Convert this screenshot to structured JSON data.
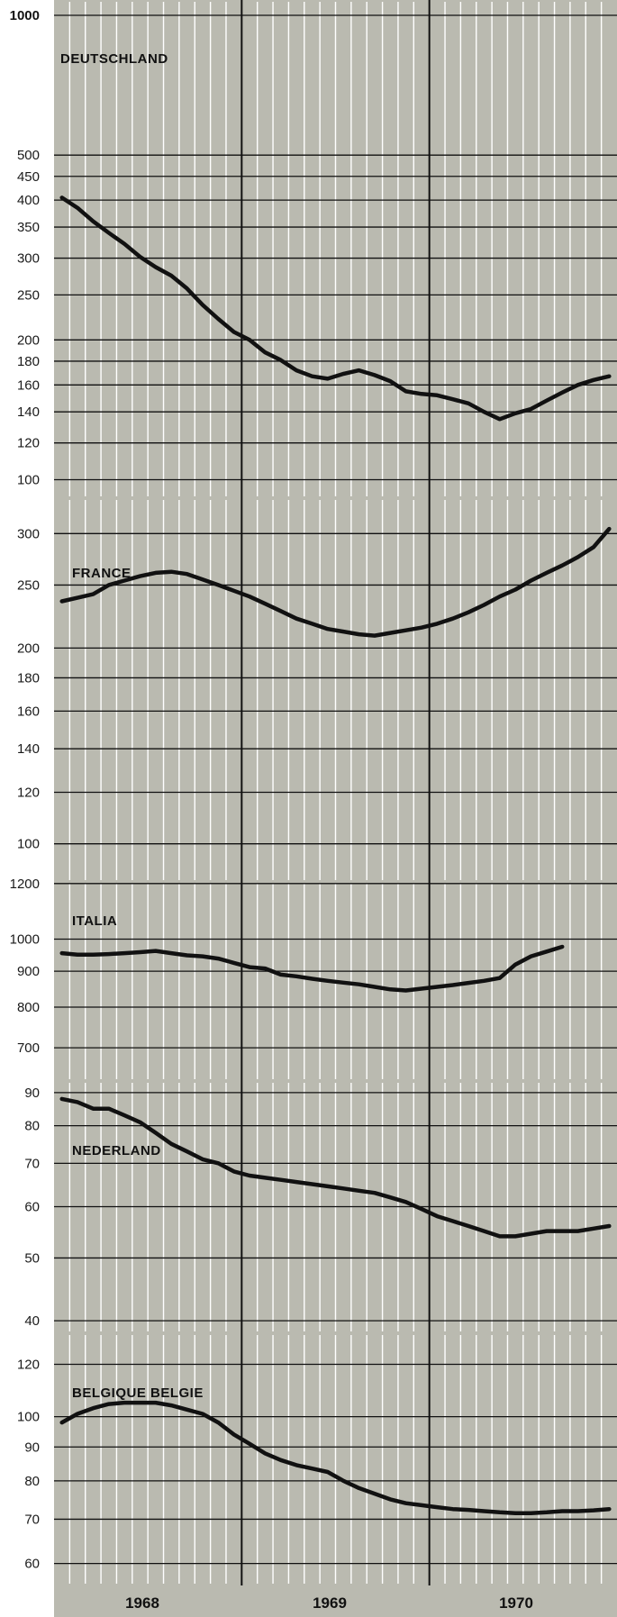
{
  "colors": {
    "panel_bg": "#babab0",
    "grid_line": "#ffffff",
    "axis_line": "#111111",
    "series_line": "#111111"
  },
  "x_axis": {
    "labels": [
      "1968",
      "1969",
      "1970"
    ],
    "scale": "months Jan 1968 - Dec 1970"
  },
  "chart_data": [
    {
      "type": "line",
      "title": "DEUTSCHLAND",
      "scale": "log",
      "ylim": [
        95,
        1000
      ],
      "yticks": [
        "100",
        "120",
        "140",
        "160",
        "180",
        "200",
        "250",
        "300",
        "350",
        "400",
        "450",
        "500",
        "1000"
      ],
      "x": [
        "1968-01",
        "1968-02",
        "1968-03",
        "1968-04",
        "1968-05",
        "1968-06",
        "1968-07",
        "1968-08",
        "1968-09",
        "1968-10",
        "1968-11",
        "1968-12",
        "1969-01",
        "1969-02",
        "1969-03",
        "1969-04",
        "1969-05",
        "1969-06",
        "1969-07",
        "1969-08",
        "1969-09",
        "1969-10",
        "1969-11",
        "1969-12",
        "1970-01",
        "1970-02",
        "1970-03",
        "1970-04",
        "1970-05",
        "1970-06",
        "1970-07",
        "1970-08",
        "1970-09",
        "1970-10",
        "1970-11",
        "1970-12"
      ],
      "values": [
        405,
        385,
        360,
        340,
        322,
        302,
        287,
        275,
        258,
        238,
        222,
        208,
        200,
        188,
        181,
        172,
        167,
        165,
        169,
        172,
        168,
        163,
        155,
        153,
        152,
        149,
        146,
        140,
        135,
        139,
        142,
        148,
        154,
        160,
        164,
        167
      ]
    },
    {
      "type": "line",
      "title": "FRANCE",
      "scale": "log",
      "ylim": [
        98,
        312
      ],
      "yticks": [
        "100",
        "120",
        "140",
        "160",
        "180",
        "200",
        "250",
        "300"
      ],
      "x": [
        "1968-01",
        "1968-02",
        "1968-03",
        "1968-04",
        "1968-05",
        "1968-06",
        "1968-07",
        "1968-08",
        "1968-09",
        "1968-10",
        "1968-11",
        "1968-12",
        "1969-01",
        "1969-02",
        "1969-03",
        "1969-04",
        "1969-05",
        "1969-06",
        "1969-07",
        "1969-08",
        "1969-09",
        "1969-10",
        "1969-11",
        "1969-12",
        "1970-01",
        "1970-02",
        "1970-03",
        "1970-04",
        "1970-05",
        "1970-06",
        "1970-07",
        "1970-08",
        "1970-09",
        "1970-10",
        "1970-11",
        "1970-12"
      ],
      "values": [
        236,
        239,
        242,
        250,
        254,
        258,
        261,
        262,
        260,
        255,
        250,
        245,
        240,
        234,
        228,
        222,
        218,
        214,
        212,
        210,
        209,
        211,
        213,
        215,
        218,
        222,
        227,
        233,
        240,
        246,
        254,
        261,
        268,
        276,
        286,
        305
      ]
    },
    {
      "type": "line",
      "title": "ITALIA",
      "scale": "log",
      "ylim": [
        690,
        1250
      ],
      "yticks": [
        "700",
        "800",
        "900",
        "1000",
        "1200"
      ],
      "x": [
        "1968-01",
        "1968-02",
        "1968-03",
        "1968-04",
        "1968-05",
        "1968-06",
        "1968-07",
        "1968-08",
        "1968-09",
        "1968-10",
        "1968-11",
        "1968-12",
        "1969-01",
        "1969-02",
        "1969-03",
        "1969-04",
        "1969-05",
        "1969-06",
        "1969-07",
        "1969-08",
        "1969-09",
        "1969-10",
        "1969-11",
        "1969-12",
        "1970-01",
        "1970-02",
        "1970-03",
        "1970-04",
        "1970-05",
        "1970-06",
        "1970-07",
        "1970-08",
        "1970-09"
      ],
      "values": [
        955,
        950,
        950,
        952,
        955,
        958,
        962,
        955,
        948,
        945,
        938,
        925,
        912,
        908,
        890,
        885,
        878,
        872,
        867,
        862,
        855,
        848,
        845,
        850,
        855,
        860,
        866,
        872,
        880,
        920,
        945,
        960,
        975
      ]
    },
    {
      "type": "line",
      "title": "NEDERLAND",
      "scale": "log",
      "ylim": [
        39,
        92
      ],
      "yticks": [
        "40",
        "50",
        "60",
        "70",
        "80",
        "90"
      ],
      "x": [
        "1968-01",
        "1968-02",
        "1968-03",
        "1968-04",
        "1968-05",
        "1968-06",
        "1968-07",
        "1968-08",
        "1968-09",
        "1968-10",
        "1968-11",
        "1968-12",
        "1969-01",
        "1969-02",
        "1969-03",
        "1969-04",
        "1969-05",
        "1969-06",
        "1969-07",
        "1969-08",
        "1969-09",
        "1969-10",
        "1969-11",
        "1969-12",
        "1970-01",
        "1970-02",
        "1970-03",
        "1970-04",
        "1970-05",
        "1970-06",
        "1970-07",
        "1970-08",
        "1970-09",
        "1970-10",
        "1970-11",
        "1970-12"
      ],
      "values": [
        88,
        87,
        85,
        85,
        83,
        81,
        78,
        75,
        73,
        71,
        70,
        68,
        67,
        66.5,
        66,
        65.5,
        65,
        64.5,
        64,
        63.5,
        63,
        62,
        61,
        59.5,
        58,
        57,
        56,
        55,
        54,
        54,
        54.5,
        55,
        55,
        55,
        55.5,
        56
      ]
    },
    {
      "type": "line",
      "title": "BELGIQUE BELGIE",
      "scale": "log",
      "ylim": [
        57,
        124
      ],
      "yticks": [
        "60",
        "70",
        "80",
        "90",
        "100",
        "120"
      ],
      "x": [
        "1968-01",
        "1968-02",
        "1968-03",
        "1968-04",
        "1968-05",
        "1968-06",
        "1968-07",
        "1968-08",
        "1968-09",
        "1968-10",
        "1968-11",
        "1968-12",
        "1969-01",
        "1969-02",
        "1969-03",
        "1969-04",
        "1969-05",
        "1969-06",
        "1969-07",
        "1969-08",
        "1969-09",
        "1969-10",
        "1969-11",
        "1969-12",
        "1970-01",
        "1970-02",
        "1970-03",
        "1970-04",
        "1970-05",
        "1970-06",
        "1970-07",
        "1970-08",
        "1970-09",
        "1970-10",
        "1970-11",
        "1970-12"
      ],
      "values": [
        98,
        101,
        103,
        104.5,
        105,
        105,
        105,
        104,
        102.5,
        101,
        98,
        94,
        91,
        88,
        86,
        84.5,
        83.5,
        82.5,
        80,
        78,
        76.5,
        75,
        74,
        73.5,
        73,
        72.5,
        72.3,
        72,
        71.7,
        71.5,
        71.5,
        71.7,
        72,
        72,
        72.2,
        72.5
      ]
    }
  ]
}
